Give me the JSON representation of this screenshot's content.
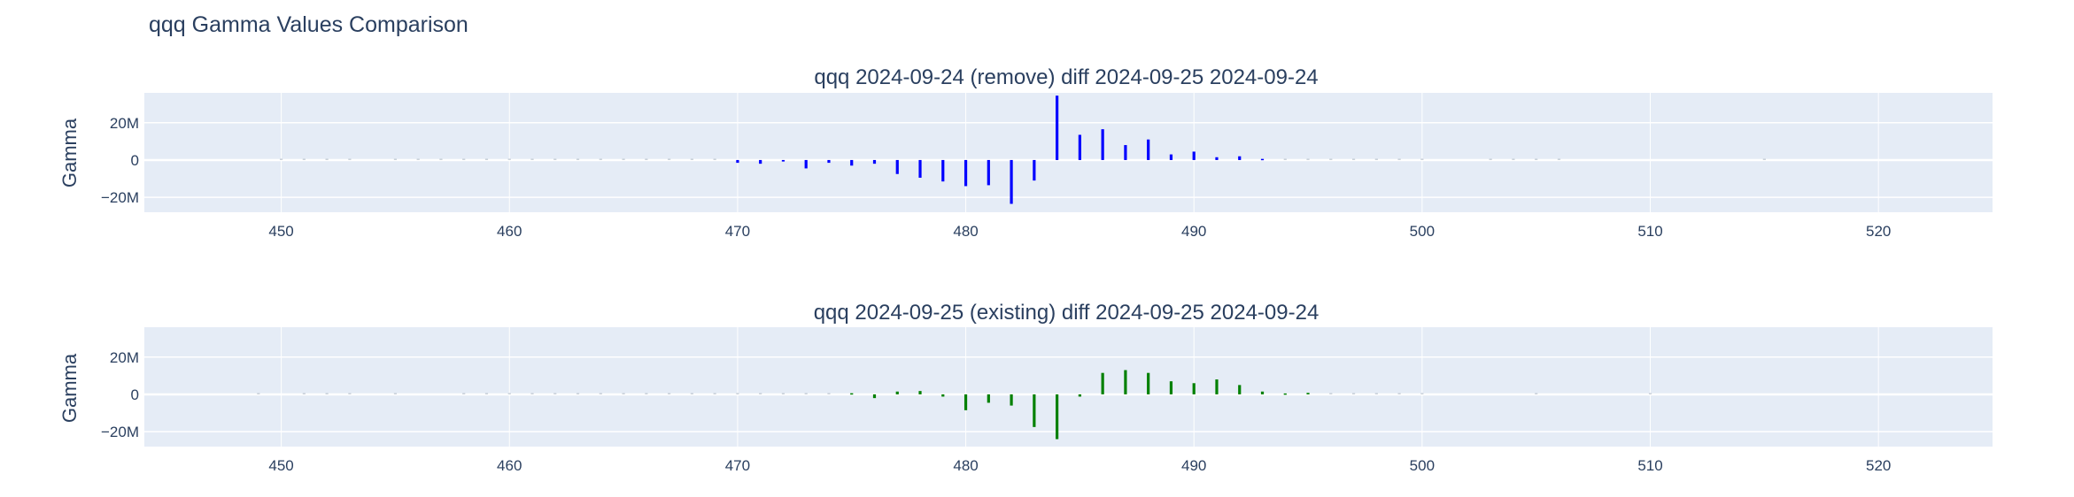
{
  "page": {
    "title": "qqq Gamma Values Comparison"
  },
  "chart_data": [
    {
      "type": "bar",
      "title": "qqq 2024-09-24 (remove) diff 2024-09-25 2024-09-24",
      "ylabel": "Gamma",
      "xlabel": "",
      "color": "#0000ff",
      "xlim": [
        444,
        525
      ],
      "ylim": [
        -28,
        36
      ],
      "x_ticks": [
        450,
        460,
        470,
        480,
        490,
        500,
        510,
        520
      ],
      "x_tick_labels": [
        "450",
        "460",
        "470",
        "480",
        "490",
        "500",
        "510",
        "520"
      ],
      "y_ticks": [
        -20,
        0,
        20
      ],
      "y_tick_labels": [
        "−20M",
        "0",
        "20M"
      ],
      "unit": "M",
      "x": [
        450,
        451,
        452,
        453,
        455,
        456,
        457,
        458,
        459,
        460,
        461,
        462,
        463,
        464,
        465,
        466,
        467,
        468,
        469,
        470,
        471,
        472,
        473,
        474,
        475,
        476,
        477,
        478,
        479,
        480,
        481,
        482,
        483,
        484,
        485,
        486,
        487,
        488,
        489,
        490,
        491,
        492,
        493,
        494,
        495,
        496,
        497,
        498,
        499,
        500,
        503,
        504,
        505,
        506,
        515
      ],
      "values": [
        0.1,
        0.1,
        0.1,
        0.1,
        0.1,
        0.1,
        0.1,
        0.1,
        0.1,
        0.1,
        0.1,
        0.1,
        0.1,
        0.1,
        0.1,
        0.1,
        0.1,
        0.1,
        0.1,
        -1.5,
        -2,
        -0.8,
        -4.5,
        -1.5,
        -3,
        -2,
        -7.5,
        -9.5,
        -11.5,
        -14,
        -13.5,
        -23.5,
        -11,
        34.5,
        13.5,
        16.5,
        8,
        11,
        3,
        4.5,
        1.5,
        2,
        0.6,
        0.3,
        0.3,
        0.2,
        0.2,
        0.2,
        0.2,
        0.2,
        0.1,
        0.1,
        0.1,
        0.1,
        0.1
      ]
    },
    {
      "type": "bar",
      "title": "qqq 2024-09-25 (existing) diff 2024-09-25 2024-09-24",
      "ylabel": "Gamma",
      "xlabel": "",
      "color": "#008000",
      "xlim": [
        444,
        525
      ],
      "ylim": [
        -28,
        36
      ],
      "x_ticks": [
        450,
        460,
        470,
        480,
        490,
        500,
        510,
        520
      ],
      "x_tick_labels": [
        "450",
        "460",
        "470",
        "480",
        "490",
        "500",
        "510",
        "520"
      ],
      "y_ticks": [
        -20,
        0,
        20
      ],
      "y_tick_labels": [
        "−20M",
        "0",
        "20M"
      ],
      "unit": "M",
      "x": [
        449,
        451,
        452,
        453,
        455,
        458,
        459,
        460,
        461,
        462,
        463,
        464,
        465,
        466,
        467,
        468,
        469,
        470,
        471,
        472,
        473,
        474,
        475,
        476,
        477,
        478,
        479,
        480,
        481,
        482,
        483,
        484,
        485,
        486,
        487,
        488,
        489,
        490,
        491,
        492,
        493,
        494,
        495,
        496,
        497,
        498,
        499,
        500,
        505,
        510
      ],
      "values": [
        0.1,
        0.1,
        0.1,
        0.1,
        0.1,
        0.1,
        0.1,
        0.1,
        0.1,
        0.1,
        0.1,
        0.1,
        0.1,
        0.1,
        0.1,
        0.3,
        0.3,
        0.3,
        0.2,
        0.2,
        0.3,
        0.3,
        0.6,
        -2,
        1.5,
        1.8,
        -1.2,
        -8.5,
        -4.5,
        -6,
        -17.5,
        -24,
        -1.2,
        11.5,
        13,
        11.5,
        7,
        6,
        8,
        5,
        1.5,
        0.5,
        0.8,
        0.3,
        0.2,
        0.2,
        0.2,
        0.2,
        0.1,
        0.1
      ]
    }
  ]
}
